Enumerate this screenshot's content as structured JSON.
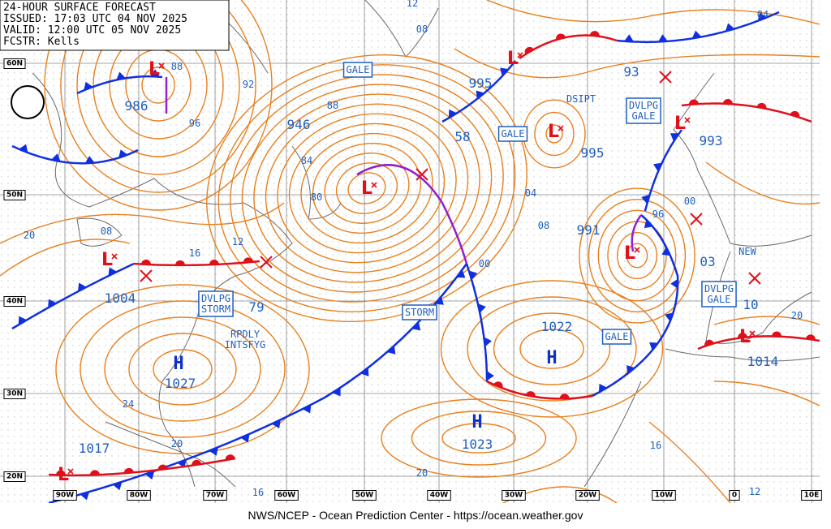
{
  "header": {
    "title": "24-HOUR SURFACE FORECAST",
    "issued": "ISSUED: 17:03 UTC 04 NOV 2025",
    "valid": "VALID: 12:00 UTC 05 NOV 2025",
    "forecaster": "FCSTR: Kells"
  },
  "footer": "NWS/NCEP - Ocean Prediction Center - https://ocean.weather.gov",
  "lat_labels": [
    "60N",
    "50N",
    "40N",
    "30N",
    "20N"
  ],
  "lon_labels": [
    "90W",
    "80W",
    "70W",
    "60W",
    "50W",
    "40W",
    "30W",
    "20W",
    "10W",
    "0",
    "10E"
  ],
  "isobar_labels": [
    "12",
    "08",
    "04",
    "88",
    "92",
    "96",
    "88",
    "84",
    "80",
    "04",
    "08",
    "00",
    "96",
    "00",
    "20",
    "08",
    "16",
    "12",
    "24",
    "20",
    "16",
    "20",
    "16",
    "12",
    "20"
  ],
  "pressure_labels": [
    "986",
    "946",
    "995",
    "58",
    "995",
    "93",
    "993",
    "991",
    "03",
    "1004",
    "79",
    "1022",
    "1027",
    "1023",
    "1017",
    "1014",
    "10"
  ],
  "highs": [
    "H",
    "H",
    "H"
  ],
  "lows": [
    "L",
    "L",
    "L",
    "L",
    "L",
    "L",
    "L",
    "L",
    "L"
  ],
  "boxed": [
    {
      "lines": [
        "GALE"
      ]
    },
    {
      "lines": [
        "GALE"
      ]
    },
    {
      "lines": [
        "DVLPG",
        "GALE"
      ]
    },
    {
      "lines": [
        "DVLPG",
        "STORM"
      ]
    },
    {
      "lines": [
        "STORM"
      ]
    },
    {
      "lines": [
        "GALE"
      ]
    },
    {
      "lines": [
        "DVLPG",
        "GALE"
      ]
    }
  ],
  "notes": [
    {
      "lines": [
        "DSIPT"
      ]
    },
    {
      "lines": [
        "NEW"
      ]
    },
    {
      "lines": [
        "RPDLY",
        "INTSFYG"
      ]
    }
  ]
}
